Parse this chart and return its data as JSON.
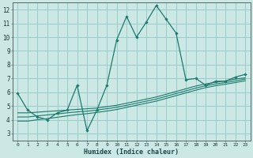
{
  "xlabel": "Humidex (Indice chaleur)",
  "bg_color": "#cce8e4",
  "grid_color": "#99cccc",
  "line_color": "#1a7a6e",
  "xlim": [
    -0.5,
    23.5
  ],
  "ylim": [
    2.5,
    12.5
  ],
  "xticks": [
    0,
    1,
    2,
    3,
    4,
    5,
    6,
    7,
    8,
    9,
    10,
    11,
    12,
    13,
    14,
    15,
    16,
    17,
    18,
    19,
    20,
    21,
    22,
    23
  ],
  "yticks": [
    3,
    4,
    5,
    6,
    7,
    8,
    9,
    10,
    11,
    12
  ],
  "main_x": [
    0,
    1,
    2,
    3,
    4,
    5,
    6,
    7,
    8,
    9,
    10,
    11,
    12,
    13,
    14,
    15,
    16,
    17,
    18,
    19,
    20,
    21,
    22,
    23
  ],
  "main_y": [
    5.9,
    4.7,
    4.2,
    4.0,
    4.5,
    4.7,
    6.5,
    3.2,
    4.7,
    6.5,
    9.8,
    11.5,
    10.0,
    11.1,
    12.3,
    11.3,
    10.3,
    6.9,
    7.0,
    6.5,
    6.8,
    6.8,
    7.1,
    7.3
  ],
  "line1_x": [
    0,
    1,
    2,
    3,
    4,
    5,
    6,
    7,
    8,
    9,
    10,
    11,
    12,
    13,
    14,
    15,
    16,
    17,
    18,
    19,
    20,
    21,
    22,
    23
  ],
  "line1_y": [
    4.5,
    4.5,
    4.55,
    4.6,
    4.65,
    4.7,
    4.75,
    4.8,
    4.85,
    4.95,
    5.05,
    5.2,
    5.35,
    5.5,
    5.65,
    5.85,
    6.05,
    6.25,
    6.45,
    6.6,
    6.72,
    6.82,
    6.95,
    7.05
  ],
  "line2_x": [
    0,
    1,
    2,
    3,
    4,
    5,
    6,
    7,
    8,
    9,
    10,
    11,
    12,
    13,
    14,
    15,
    16,
    17,
    18,
    19,
    20,
    21,
    22,
    23
  ],
  "line2_y": [
    4.2,
    4.2,
    4.28,
    4.35,
    4.42,
    4.5,
    4.57,
    4.62,
    4.7,
    4.8,
    4.9,
    5.05,
    5.2,
    5.35,
    5.5,
    5.7,
    5.9,
    6.1,
    6.3,
    6.47,
    6.6,
    6.7,
    6.82,
    6.95
  ],
  "line3_x": [
    0,
    1,
    2,
    3,
    4,
    5,
    6,
    7,
    8,
    9,
    10,
    11,
    12,
    13,
    14,
    15,
    16,
    17,
    18,
    19,
    20,
    21,
    22,
    23
  ],
  "line3_y": [
    3.9,
    3.9,
    4.0,
    4.08,
    4.18,
    4.28,
    4.37,
    4.44,
    4.53,
    4.63,
    4.74,
    4.9,
    5.05,
    5.2,
    5.35,
    5.55,
    5.75,
    5.95,
    6.15,
    6.33,
    6.47,
    6.58,
    6.7,
    6.83
  ]
}
